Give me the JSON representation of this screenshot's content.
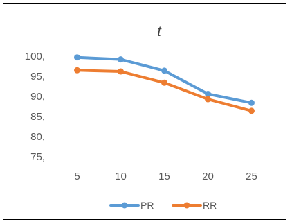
{
  "chart_data": {
    "type": "line",
    "title": "t",
    "xlabel": "",
    "ylabel": "",
    "x": [
      5,
      10,
      15,
      20,
      25
    ],
    "x_tick_labels": [
      "5",
      "10",
      "15",
      "20",
      "25"
    ],
    "y_tick_labels": [
      "75,",
      "80,",
      "85,",
      "90,",
      "95,",
      "100,"
    ],
    "ylim": [
      72,
      102
    ],
    "grid": false,
    "legend_position": "bottom",
    "series": [
      {
        "name": "PR",
        "color": "#5B9BD5",
        "values": [
          99.7,
          99.2,
          96.4,
          90.6,
          88.4
        ]
      },
      {
        "name": "RR",
        "color": "#ED7D31",
        "values": [
          96.5,
          96.2,
          93.4,
          89.3,
          86.4
        ]
      }
    ]
  }
}
